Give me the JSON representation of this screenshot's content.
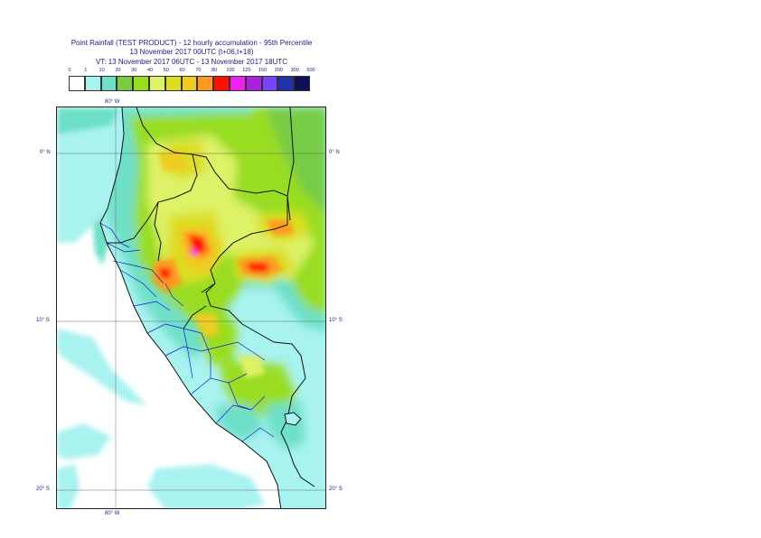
{
  "header": {
    "title_line1": "Point Rainfall (TEST PRODUCT) - 12 hourly accumulation - 95th Percentile",
    "title_line2": "13 November 2017 00UTC (t+06,t+18)",
    "title_line3": "VT: 13 November 2017 06UTC - 13 November 2017 18UTC"
  },
  "legend": {
    "ticks": [
      "0",
      "1",
      "10",
      "20",
      "30",
      "40",
      "50",
      "60",
      "70",
      "80",
      "100",
      "125",
      "150",
      "200",
      "300",
      "500"
    ],
    "colors": [
      "#ffffff",
      "#a8f2f0",
      "#6ee0c8",
      "#77cc44",
      "#99dd22",
      "#ddf266",
      "#dddd22",
      "#eecc22",
      "#ff9922",
      "#ff1100",
      "#ee22ee",
      "#aa22dd",
      "#7744ff",
      "#2233aa",
      "#0f0f55"
    ]
  },
  "map": {
    "lon_label_top": "80° W",
    "lon_label_bottom": "80° W",
    "lat_labels": [
      {
        "left": "0° N",
        "right": "0° N"
      },
      {
        "left": "10° S",
        "right": "10° S"
      },
      {
        "left": "20° S",
        "right": "20° S"
      }
    ]
  }
}
